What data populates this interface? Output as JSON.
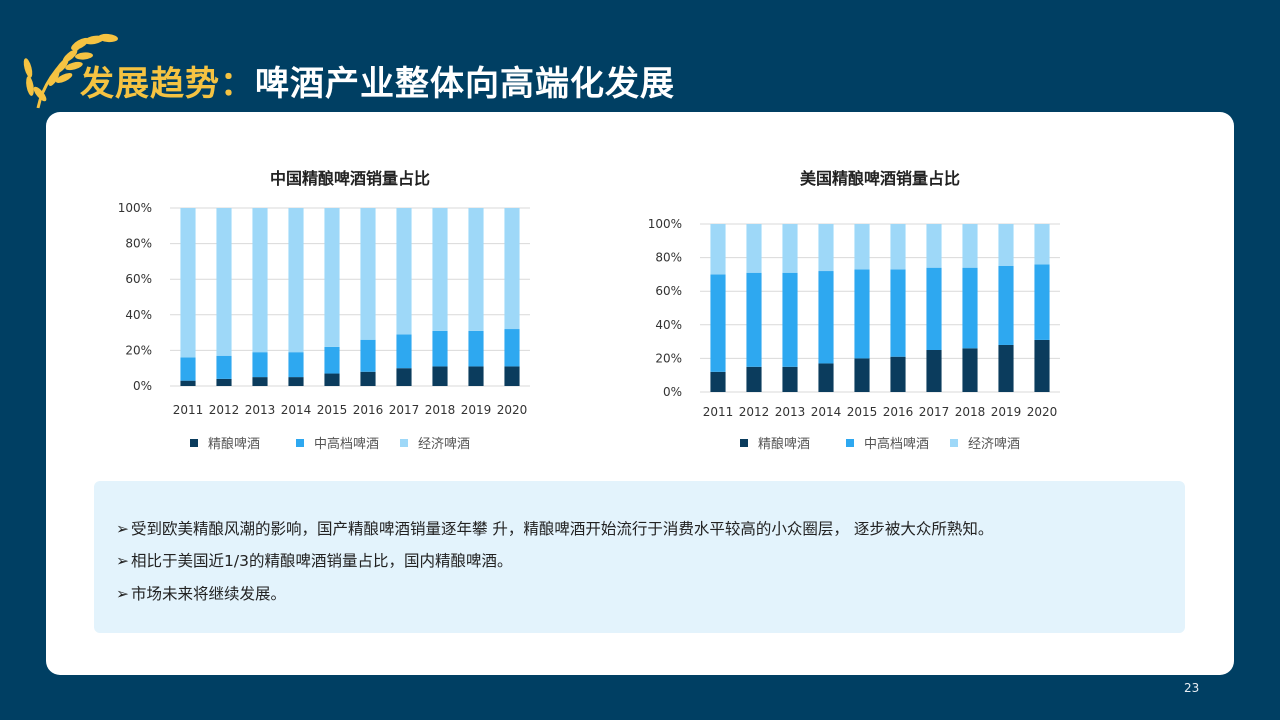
{
  "header": {
    "title_accent": "发展趋势：",
    "title_main": "啤酒产业整体向高端化发展"
  },
  "colors": {
    "craft": "#0b3c5d",
    "premium": "#2ea8f0",
    "economy": "#9ed8f8",
    "background": "#003f63",
    "accent": "#f5c342"
  },
  "chart_data": [
    {
      "type": "bar",
      "stacked": true,
      "title": "中国精酿啤酒销量占比",
      "categories": [
        "2011",
        "2012",
        "2013",
        "2014",
        "2015",
        "2016",
        "2017",
        "2018",
        "2019",
        "2020"
      ],
      "series": [
        {
          "name": "精酿啤酒",
          "values": [
            3,
            4,
            5,
            5,
            7,
            8,
            10,
            11,
            11,
            11
          ]
        },
        {
          "name": "中高档啤酒",
          "values": [
            13,
            13,
            14,
            14,
            15,
            18,
            19,
            20,
            20,
            21
          ]
        },
        {
          "name": "经济啤酒",
          "values": [
            84,
            83,
            81,
            81,
            78,
            74,
            71,
            69,
            69,
            68
          ]
        }
      ],
      "ylim": [
        0,
        100
      ],
      "yticks": [
        "0%",
        "20%",
        "40%",
        "60%",
        "80%",
        "100%"
      ],
      "legend": "bottom"
    },
    {
      "type": "bar",
      "stacked": true,
      "title": "美国精酿啤酒销量占比",
      "categories": [
        "2011",
        "2012",
        "2013",
        "2014",
        "2015",
        "2016",
        "2017",
        "2018",
        "2019",
        "2020"
      ],
      "series": [
        {
          "name": "精酿啤酒",
          "values": [
            12,
            15,
            15,
            17,
            20,
            21,
            25,
            26,
            28,
            31
          ]
        },
        {
          "name": "中高档啤酒",
          "values": [
            58,
            56,
            56,
            55,
            53,
            52,
            49,
            48,
            47,
            45
          ]
        },
        {
          "name": "经济啤酒",
          "values": [
            30,
            29,
            29,
            28,
            27,
            27,
            26,
            26,
            25,
            24
          ]
        }
      ],
      "ylim": [
        0,
        100
      ],
      "yticks": [
        "0%",
        "20%",
        "40%",
        "60%",
        "80%",
        "100%"
      ],
      "legend": "bottom"
    }
  ],
  "notes": [
    "受到欧美精酿风潮的影响，国产精酿啤酒销量逐年攀 升，精酿啤酒开始流行于消费水平较高的小众圈层， 逐步被大众所熟知。",
    "相比于美国近1/3的精酿啤酒销量占比，国内精酿啤酒。",
    "市场未来将继续发展。"
  ],
  "bullet_symbol": "➢",
  "page_number": "23"
}
